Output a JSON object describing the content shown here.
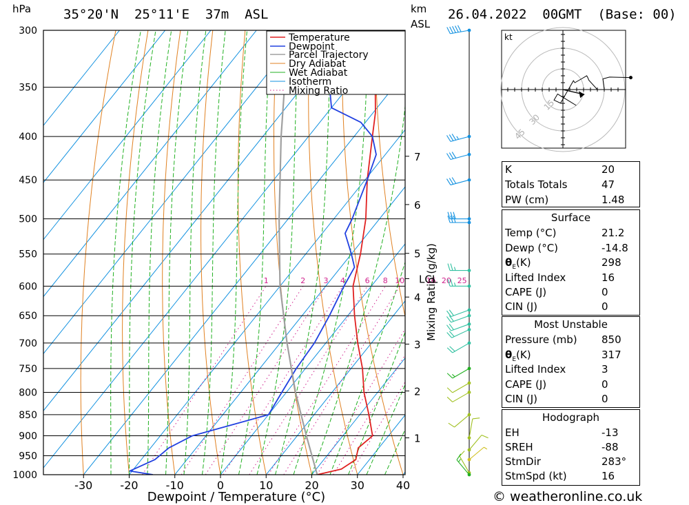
{
  "header": {
    "hpa_unit": "hPa",
    "location": "35°20'N  25°11'E  37m  ASL",
    "km_unit": "km",
    "asl_unit": "ASL",
    "datetime": "26.04.2022  00GMT  (Base: 00)"
  },
  "chart_data": {
    "type": "line",
    "title": "",
    "xlabel": "Dewpoint / Temperature (°C)",
    "ylabel": "hPa",
    "mixing_ratio_label": "Mixing Ratio (g/kg)",
    "xlim": [
      -40,
      40
    ],
    "ylim": [
      1000,
      300
    ],
    "x_ticks": [
      -30,
      -20,
      -10,
      0,
      10,
      20,
      30,
      40
    ],
    "pressure_levels": [
      300,
      350,
      400,
      450,
      500,
      550,
      600,
      650,
      700,
      750,
      800,
      850,
      900,
      950,
      1000
    ],
    "km_ticks": [
      {
        "label": "1",
        "p": 905
      },
      {
        "label": "2",
        "p": 797
      },
      {
        "label": "3",
        "p": 702
      },
      {
        "label": "4",
        "p": 618
      },
      {
        "label": "5",
        "p": 549
      },
      {
        "label": "6",
        "p": 481
      },
      {
        "label": "7",
        "p": 422
      }
    ],
    "lcl": {
      "label": "LCL",
      "p": 588
    },
    "mixing_ratio_values": [
      1,
      2,
      3,
      4,
      6,
      8,
      10,
      16,
      20,
      25
    ],
    "legend": [
      "Temperature",
      "Dewpoint",
      "Parcel Trajectory",
      "Dry Adiabat",
      "Wet Adiabat",
      "Isotherm",
      "Mixing Ratio"
    ],
    "legend_position": "top-right",
    "series": [
      {
        "name": "Temperature",
        "points": [
          [
            1000,
            21.2
          ],
          [
            985,
            25.5
          ],
          [
            960,
            27
          ],
          [
            930,
            25.5
          ],
          [
            900,
            26.5
          ],
          [
            850,
            22
          ],
          [
            800,
            17
          ],
          [
            750,
            12.5
          ],
          [
            700,
            7
          ],
          [
            650,
            1.5
          ],
          [
            600,
            -4
          ],
          [
            550,
            -8
          ],
          [
            500,
            -13
          ],
          [
            450,
            -19.5
          ],
          [
            400,
            -26
          ],
          [
            375,
            -29.5
          ],
          [
            350,
            -34
          ],
          [
            325,
            -39
          ],
          [
            300,
            -44
          ]
        ]
      },
      {
        "name": "Dewpoint",
        "points": [
          [
            1000,
            -14.8
          ],
          [
            990,
            -20.5
          ],
          [
            960,
            -17
          ],
          [
            930,
            -16
          ],
          [
            900,
            -13
          ],
          [
            850,
            0
          ],
          [
            800,
            -1
          ],
          [
            750,
            -2
          ],
          [
            700,
            -2.5
          ],
          [
            650,
            -4
          ],
          [
            600,
            -6
          ],
          [
            570,
            -7
          ],
          [
            550,
            -10
          ],
          [
            520,
            -15
          ],
          [
            500,
            -16
          ],
          [
            450,
            -19.5
          ],
          [
            420,
            -22
          ],
          [
            400,
            -26
          ],
          [
            385,
            -31
          ],
          [
            370,
            -40
          ],
          [
            350,
            -44
          ],
          [
            300,
            -52
          ]
        ]
      },
      {
        "name": "Parcel Trajectory",
        "points": [
          [
            1000,
            21.2
          ],
          [
            900,
            12
          ],
          [
            800,
            2
          ],
          [
            700,
            -8.5
          ],
          [
            600,
            -20
          ],
          [
            500,
            -32
          ],
          [
            400,
            -46
          ],
          [
            300,
            -63
          ]
        ]
      }
    ],
    "colors": {
      "temperature": "#e02020",
      "dewpoint": "#2040e0",
      "parcel": "#a0a0a0",
      "dry_adiabat": "#e08020",
      "wet_adiabat": "#20b020",
      "isotherm": "#1090e0",
      "mixing_ratio": "#d0208c"
    }
  },
  "wind_profile": [
    {
      "p": 300,
      "dir": 260,
      "spd": 50
    },
    {
      "p": 400,
      "dir": 255,
      "spd": 35
    },
    {
      "p": 420,
      "dir": 255,
      "spd": 30
    },
    {
      "p": 450,
      "dir": 255,
      "spd": 30
    },
    {
      "p": 500,
      "dir": 270,
      "spd": 30
    },
    {
      "p": 505,
      "dir": 270,
      "spd": 30
    },
    {
      "p": 575,
      "dir": 270,
      "spd": 25
    },
    {
      "p": 600,
      "dir": 270,
      "spd": 25
    },
    {
      "p": 640,
      "dir": 250,
      "spd": 20
    },
    {
      "p": 650,
      "dir": 250,
      "spd": 20
    },
    {
      "p": 665,
      "dir": 250,
      "spd": 20
    },
    {
      "p": 675,
      "dir": 245,
      "spd": 20
    },
    {
      "p": 700,
      "dir": 240,
      "spd": 20
    },
    {
      "p": 750,
      "dir": 240,
      "spd": 15
    },
    {
      "p": 780,
      "dir": 240,
      "spd": 10
    },
    {
      "p": 800,
      "dir": 240,
      "spd": 10
    },
    {
      "p": 850,
      "dir": 230,
      "spd": 10
    },
    {
      "p": 905,
      "dir": 10,
      "spd": 10
    },
    {
      "p": 935,
      "dir": 40,
      "spd": 10
    },
    {
      "p": 960,
      "dir": 50,
      "spd": 5
    },
    {
      "p": 995,
      "dir": 330,
      "spd": 10
    },
    {
      "p": 1000,
      "dir": 320,
      "spd": 15
    }
  ],
  "hodograph": {
    "unit": "kt",
    "ring_labels": [
      "15",
      "30",
      "45"
    ]
  },
  "indices": {
    "k_label": "K",
    "k_value": "20",
    "tt_label": "Totals Totals",
    "tt_value": "47",
    "pw_label": "PW (cm)",
    "pw_value": "1.48"
  },
  "surface": {
    "title": "Surface",
    "temp_label": "Temp (°C)",
    "temp_value": "21.2",
    "dewp_label": "Dewp (°C)",
    "dewp_value": "-14.8",
    "theta_label_sym": "θ",
    "theta_label_sub": "E",
    "theta_label_unit": "(K)",
    "theta_value": "298",
    "li_label": "Lifted Index",
    "li_value": "16",
    "cape_label": "CAPE (J)",
    "cape_value": "0",
    "cin_label": "CIN (J)",
    "cin_value": "0"
  },
  "most_unstable": {
    "title": "Most Unstable",
    "pressure_label": "Pressure (mb)",
    "pressure_value": "850",
    "theta_label_sym": "θ",
    "theta_label_sub": "E",
    "theta_label_unit": "(K)",
    "theta_value": "317",
    "li_label": "Lifted Index",
    "li_value": "3",
    "cape_label": "CAPE (J)",
    "cape_value": "0",
    "cin_label": "CIN (J)",
    "cin_value": "0"
  },
  "hodograph_table": {
    "title": "Hodograph",
    "eh_label": "EH",
    "eh_value": "-13",
    "sreh_label": "SREH",
    "sreh_value": "-88",
    "stmdir_label": "StmDir",
    "stmdir_value": "283°",
    "stmspd_label": "StmSpd (kt)",
    "stmspd_value": "16"
  },
  "footer": {
    "copyright": "© weatheronline.co.uk"
  }
}
